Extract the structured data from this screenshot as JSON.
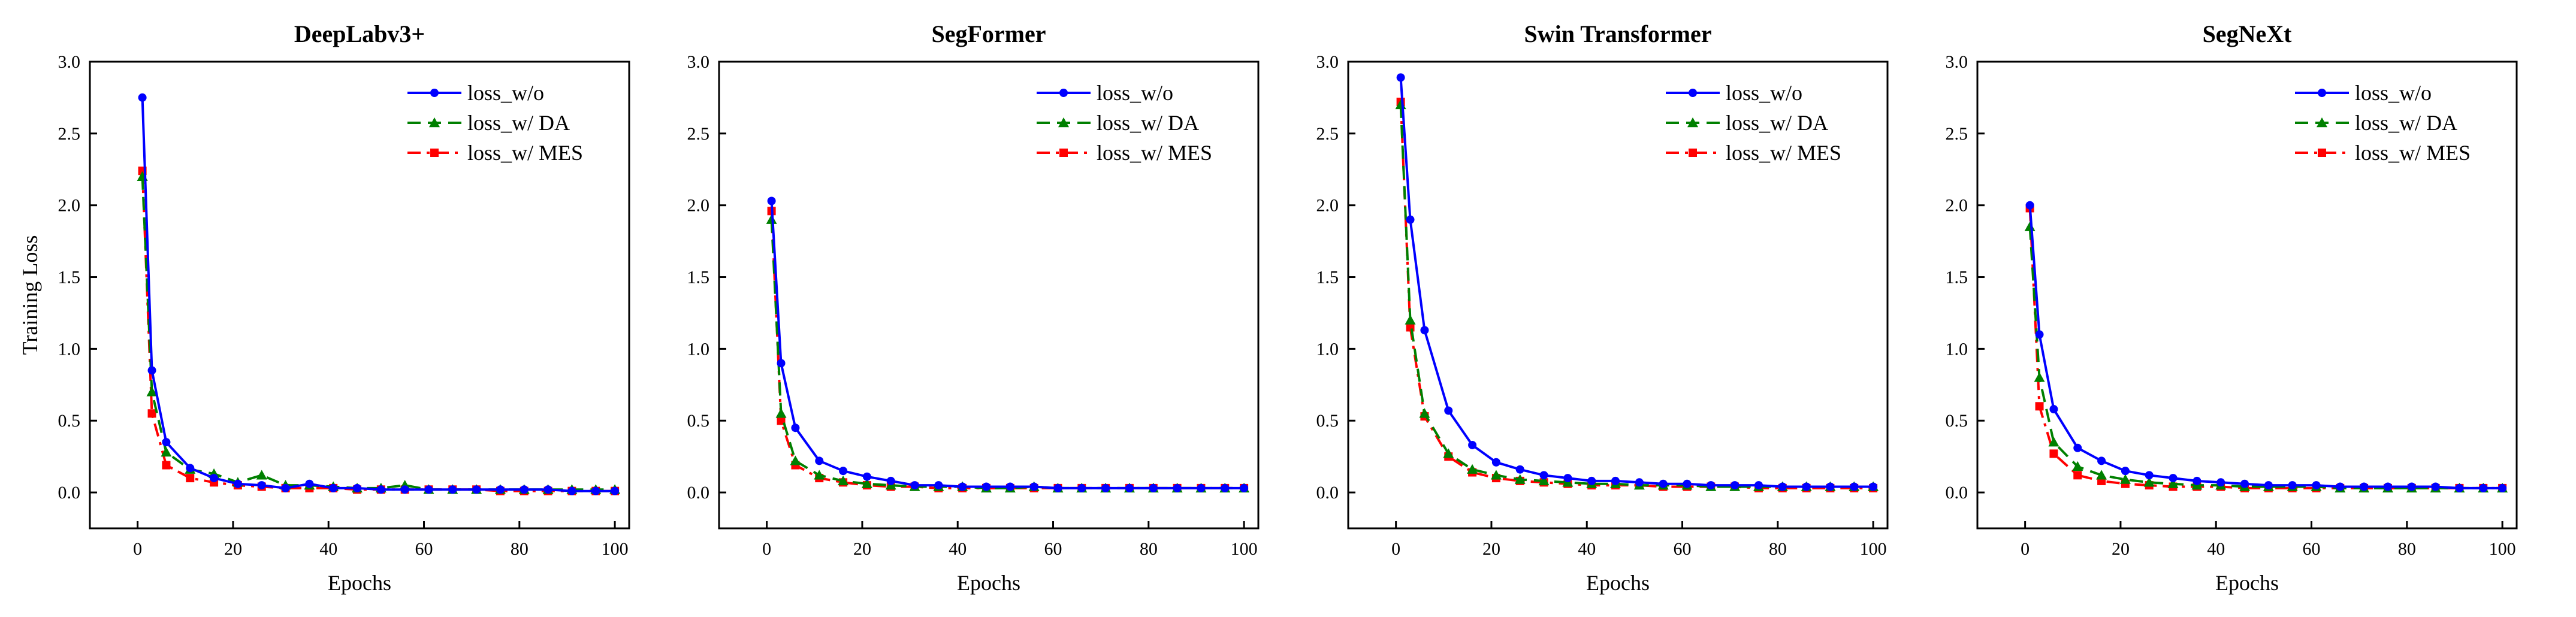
{
  "chart_data": [
    {
      "type": "line",
      "title": "DeepLabv3+",
      "xlabel": "Epochs",
      "ylabel": "Training Loss",
      "xlim": [
        -10,
        103
      ],
      "ylim": [
        -0.25,
        3.0
      ],
      "xticks": [
        "0",
        "20",
        "40",
        "60",
        "80",
        "100"
      ],
      "yticks": [
        "0.0",
        "0.5",
        "1.0",
        "1.5",
        "2.0",
        "2.5",
        "3.0"
      ],
      "legend_position": "top-right",
      "x": [
        1,
        3,
        6,
        11,
        16,
        21,
        26,
        31,
        36,
        41,
        46,
        51,
        56,
        61,
        66,
        71,
        76,
        81,
        86,
        91,
        96,
        100
      ],
      "series": [
        {
          "name": "loss_w/o",
          "color": "#0000ff",
          "marker": "circle",
          "dash": "solid",
          "values": [
            2.75,
            0.85,
            0.35,
            0.17,
            0.1,
            0.06,
            0.05,
            0.03,
            0.06,
            0.03,
            0.03,
            0.02,
            0.02,
            0.02,
            0.02,
            0.02,
            0.02,
            0.02,
            0.02,
            0.01,
            0.01,
            0.01
          ]
        },
        {
          "name": "loss_w/  DA",
          "color": "#008000",
          "marker": "triangle",
          "dash": "dash",
          "values": [
            2.2,
            0.7,
            0.28,
            0.16,
            0.13,
            0.07,
            0.12,
            0.05,
            0.05,
            0.04,
            0.03,
            0.03,
            0.05,
            0.02,
            0.02,
            0.02,
            0.02,
            0.02,
            0.02,
            0.02,
            0.02,
            0.02
          ]
        },
        {
          "name": "loss_w/  MES",
          "color": "#ff0000",
          "marker": "square",
          "dash": "dashdot",
          "values": [
            2.24,
            0.55,
            0.19,
            0.1,
            0.07,
            0.05,
            0.04,
            0.03,
            0.03,
            0.03,
            0.02,
            0.02,
            0.02,
            0.02,
            0.02,
            0.02,
            0.01,
            0.01,
            0.01,
            0.01,
            0.01,
            0.01
          ]
        }
      ]
    },
    {
      "type": "line",
      "title": "SegFormer",
      "xlabel": "Epochs",
      "ylabel": "",
      "xlim": [
        -10,
        103
      ],
      "ylim": [
        -0.25,
        3.0
      ],
      "xticks": [
        "0",
        "20",
        "40",
        "60",
        "80",
        "100"
      ],
      "yticks": [
        "0.0",
        "0.5",
        "1.0",
        "1.5",
        "2.0",
        "2.5",
        "3.0"
      ],
      "legend_position": "top-right",
      "x": [
        1,
        3,
        6,
        11,
        16,
        21,
        26,
        31,
        36,
        41,
        46,
        51,
        56,
        61,
        66,
        71,
        76,
        81,
        86,
        91,
        96,
        100
      ],
      "series": [
        {
          "name": "loss_w/o",
          "color": "#0000ff",
          "marker": "circle",
          "dash": "solid",
          "values": [
            2.03,
            0.9,
            0.45,
            0.22,
            0.15,
            0.11,
            0.08,
            0.05,
            0.05,
            0.04,
            0.04,
            0.04,
            0.04,
            0.03,
            0.03,
            0.03,
            0.03,
            0.03,
            0.03,
            0.03,
            0.03,
            0.03
          ]
        },
        {
          "name": "loss_w/  DA",
          "color": "#008000",
          "marker": "triangle",
          "dash": "dash",
          "values": [
            1.9,
            0.55,
            0.22,
            0.12,
            0.08,
            0.06,
            0.05,
            0.04,
            0.04,
            0.04,
            0.03,
            0.03,
            0.04,
            0.03,
            0.03,
            0.03,
            0.03,
            0.03,
            0.03,
            0.03,
            0.03,
            0.03
          ]
        },
        {
          "name": "loss_w/  MES",
          "color": "#ff0000",
          "marker": "square",
          "dash": "dashdot",
          "values": [
            1.96,
            0.5,
            0.19,
            0.1,
            0.07,
            0.05,
            0.04,
            0.04,
            0.03,
            0.03,
            0.03,
            0.03,
            0.03,
            0.03,
            0.03,
            0.03,
            0.03,
            0.03,
            0.03,
            0.03,
            0.03,
            0.03
          ]
        }
      ]
    },
    {
      "type": "line",
      "title": "Swin Transformer",
      "xlabel": "Epochs",
      "ylabel": "",
      "xlim": [
        -10,
        103
      ],
      "ylim": [
        -0.25,
        3.0
      ],
      "xticks": [
        "0",
        "20",
        "40",
        "60",
        "80",
        "100"
      ],
      "yticks": [
        "0.0",
        "0.5",
        "1.0",
        "1.5",
        "2.0",
        "2.5",
        "3.0"
      ],
      "legend_position": "top-right",
      "x": [
        1,
        3,
        6,
        11,
        16,
        21,
        26,
        31,
        36,
        41,
        46,
        51,
        56,
        61,
        66,
        71,
        76,
        81,
        86,
        91,
        96,
        100
      ],
      "series": [
        {
          "name": "loss_w/o",
          "color": "#0000ff",
          "marker": "circle",
          "dash": "solid",
          "values": [
            2.89,
            1.9,
            1.13,
            0.57,
            0.33,
            0.21,
            0.16,
            0.12,
            0.1,
            0.08,
            0.08,
            0.07,
            0.06,
            0.06,
            0.05,
            0.05,
            0.05,
            0.04,
            0.04,
            0.04,
            0.04,
            0.04
          ]
        },
        {
          "name": "loss_w/  DA",
          "color": "#008000",
          "marker": "triangle",
          "dash": "dash",
          "values": [
            2.7,
            1.2,
            0.55,
            0.27,
            0.16,
            0.12,
            0.09,
            0.08,
            0.07,
            0.06,
            0.06,
            0.05,
            0.05,
            0.05,
            0.04,
            0.04,
            0.04,
            0.04,
            0.04,
            0.04,
            0.04,
            0.04
          ]
        },
        {
          "name": "loss_w/  MES",
          "color": "#ff0000",
          "marker": "square",
          "dash": "dashdot",
          "values": [
            2.72,
            1.15,
            0.53,
            0.25,
            0.14,
            0.1,
            0.08,
            0.07,
            0.06,
            0.05,
            0.05,
            0.05,
            0.04,
            0.04,
            0.04,
            0.04,
            0.03,
            0.03,
            0.03,
            0.03,
            0.03,
            0.03
          ]
        }
      ]
    },
    {
      "type": "line",
      "title": "SegNeXt",
      "xlabel": "Epochs",
      "ylabel": "",
      "xlim": [
        -10,
        103
      ],
      "ylim": [
        -0.25,
        3.0
      ],
      "xticks": [
        "0",
        "20",
        "40",
        "60",
        "80",
        "100"
      ],
      "yticks": [
        "0.0",
        "0.5",
        "1.0",
        "1.5",
        "2.0",
        "2.5",
        "3.0"
      ],
      "legend_position": "top-right",
      "x": [
        1,
        3,
        6,
        11,
        16,
        21,
        26,
        31,
        36,
        41,
        46,
        51,
        56,
        61,
        66,
        71,
        76,
        81,
        86,
        91,
        96,
        100
      ],
      "series": [
        {
          "name": "loss_w/o",
          "color": "#0000ff",
          "marker": "circle",
          "dash": "solid",
          "values": [
            2.0,
            1.1,
            0.58,
            0.31,
            0.22,
            0.15,
            0.12,
            0.1,
            0.08,
            0.07,
            0.06,
            0.05,
            0.05,
            0.05,
            0.04,
            0.04,
            0.04,
            0.04,
            0.04,
            0.03,
            0.03,
            0.03
          ]
        },
        {
          "name": "loss_w/  DA",
          "color": "#008000",
          "marker": "triangle",
          "dash": "dash",
          "values": [
            1.85,
            0.8,
            0.35,
            0.18,
            0.12,
            0.09,
            0.07,
            0.06,
            0.05,
            0.05,
            0.04,
            0.04,
            0.04,
            0.04,
            0.03,
            0.03,
            0.03,
            0.03,
            0.03,
            0.03,
            0.03,
            0.03
          ]
        },
        {
          "name": "loss_w/  MES",
          "color": "#ff0000",
          "marker": "square",
          "dash": "dashdot",
          "values": [
            1.98,
            0.6,
            0.27,
            0.12,
            0.08,
            0.06,
            0.05,
            0.04,
            0.04,
            0.04,
            0.03,
            0.03,
            0.03,
            0.03,
            0.03,
            0.03,
            0.03,
            0.03,
            0.03,
            0.03,
            0.03,
            0.03
          ]
        }
      ]
    }
  ]
}
